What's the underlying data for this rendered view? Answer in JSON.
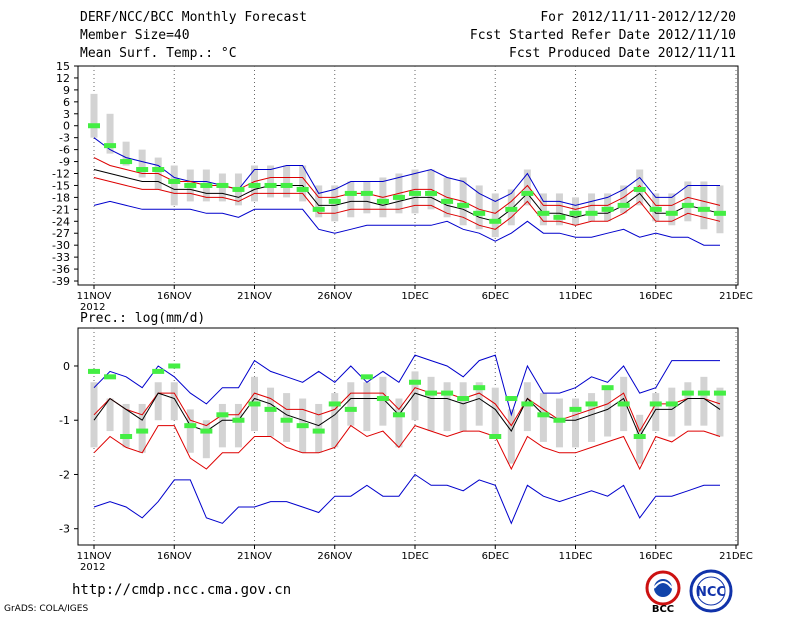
{
  "header": {
    "left": [
      "DERF/NCC/BCC Monthly Forecast",
      "Member Size=40",
      "Mean Surf. Temp.: °C"
    ],
    "right": [
      "For 2012/11/11-2012/12/20",
      "Fcst Started Refer Date 2012/11/10",
      "Fcst Produced Date 2012/11/11"
    ]
  },
  "footer": {
    "url": "http://cmdp.ncc.cma.gov.cn",
    "credit": "GrADS: COLA/IGES",
    "logo_left_text": "BCC",
    "logo_right_text": "NCC"
  },
  "colors": {
    "bar": "#d3d3d3",
    "obs": "#44ee44",
    "mean": "#000000",
    "inner": "#dd0000",
    "outer": "#0000cc",
    "grid": "#666666"
  },
  "chart_data": [
    {
      "type": "line",
      "title": "Mean Surf. Temp.: °C",
      "ylim": [
        -40,
        15
      ],
      "yticks": [
        15,
        12,
        9,
        6,
        3,
        0,
        -3,
        -6,
        -9,
        -12,
        -15,
        -18,
        -21,
        -24,
        -27,
        -30,
        -33,
        -36,
        -39
      ],
      "xtick_labels": [
        "11NOV",
        "16NOV",
        "21NOV",
        "26NOV",
        "1DEC",
        "6DEC",
        "11DEC",
        "16DEC",
        "21DEC"
      ],
      "xtick_days": [
        0,
        5,
        10,
        15,
        20,
        25,
        30,
        35,
        40
      ],
      "year_label": "2012",
      "days": [
        0,
        1,
        2,
        3,
        4,
        5,
        6,
        7,
        8,
        9,
        10,
        11,
        12,
        13,
        14,
        15,
        16,
        17,
        18,
        19,
        20,
        21,
        22,
        23,
        24,
        25,
        26,
        27,
        28,
        29,
        30,
        31,
        32,
        33,
        34,
        35,
        36,
        37,
        38,
        39
      ],
      "series": [
        {
          "name": "upper",
          "values": [
            -3,
            -6,
            -8,
            -9,
            -10,
            -13,
            -14,
            -14,
            -15,
            -16,
            -11,
            -11,
            -10,
            -10,
            -17,
            -16,
            -14,
            -14,
            -14,
            -13,
            -12,
            -11,
            -13,
            -14,
            -17,
            -19,
            -17,
            -12,
            -19,
            -19,
            -20,
            -19,
            -18,
            -16,
            -13,
            -18,
            -18,
            -15,
            -15,
            -15
          ]
        },
        {
          "name": "p_high",
          "values": [
            -8,
            -10,
            -11,
            -12,
            -12,
            -14,
            -14,
            -15,
            -15,
            -16,
            -14,
            -13,
            -13,
            -13,
            -18,
            -18,
            -17,
            -17,
            -18,
            -17,
            -16,
            -16,
            -18,
            -19,
            -21,
            -22,
            -19,
            -15,
            -20,
            -20,
            -21,
            -20,
            -20,
            -18,
            -15,
            -20,
            -20,
            -18,
            -19,
            -20
          ]
        },
        {
          "name": "mean",
          "values": [
            -11,
            -12,
            -13,
            -14,
            -14,
            -16,
            -16,
            -17,
            -17,
            -18,
            -16,
            -15,
            -15,
            -15,
            -20,
            -20,
            -19,
            -19,
            -20,
            -19,
            -18,
            -18,
            -20,
            -21,
            -23,
            -24,
            -21,
            -17,
            -22,
            -22,
            -23,
            -22,
            -22,
            -20,
            -17,
            -22,
            -22,
            -20,
            -21,
            -22
          ]
        },
        {
          "name": "p_low",
          "values": [
            -13,
            -14,
            -15,
            -16,
            -16,
            -17,
            -17,
            -18,
            -18,
            -19,
            -17,
            -17,
            -17,
            -17,
            -22,
            -22,
            -21,
            -21,
            -21,
            -21,
            -20,
            -20,
            -22,
            -23,
            -25,
            -26,
            -23,
            -19,
            -24,
            -24,
            -25,
            -24,
            -24,
            -22,
            -19,
            -24,
            -24,
            -22,
            -23,
            -24
          ]
        },
        {
          "name": "lower",
          "values": [
            -20,
            -19,
            -20,
            -21,
            -21,
            -21,
            -21,
            -22,
            -22,
            -23,
            -21,
            -21,
            -21,
            -21,
            -26,
            -27,
            -26,
            -25,
            -25,
            -25,
            -25,
            -25,
            -24,
            -26,
            -27,
            -29,
            -27,
            -24,
            -27,
            -27,
            -28,
            -28,
            -27,
            -26,
            -28,
            -27,
            -28,
            -28,
            -30,
            -30
          ]
        },
        {
          "name": "box_top",
          "values": [
            8,
            3,
            -4,
            -6,
            -8,
            -10,
            -11,
            -11,
            -12,
            -12,
            -10,
            -10,
            -10,
            -10,
            -15,
            -15,
            -14,
            -14,
            -13,
            -12,
            -11,
            -11,
            -13,
            -13,
            -15,
            -17,
            -16,
            -11,
            -17,
            -17,
            -18,
            -17,
            -17,
            -15,
            -11,
            -17,
            -17,
            -14,
            -14,
            -15
          ]
        },
        {
          "name": "box_bottom",
          "values": [
            -3,
            -7,
            -10,
            -13,
            -16,
            -20,
            -19,
            -19,
            -19,
            -20,
            -19,
            -18,
            -18,
            -19,
            -23,
            -24,
            -23,
            -22,
            -23,
            -22,
            -22,
            -21,
            -23,
            -25,
            -26,
            -28,
            -25,
            -20,
            -25,
            -25,
            -25,
            -24,
            -24,
            -22,
            -20,
            -24,
            -25,
            -24,
            -26,
            -27
          ]
        },
        {
          "name": "observed",
          "values": [
            0,
            -5,
            -9,
            -11,
            -11,
            -14,
            -15,
            -15,
            -15,
            -16,
            -15,
            -15,
            -15,
            -16,
            -21,
            -19,
            -17,
            -17,
            -19,
            -18,
            -17,
            -17,
            -19,
            -20,
            -22,
            -24,
            -21,
            -17,
            -22,
            -23,
            -22,
            -22,
            -21,
            -20,
            -16,
            -21,
            -22,
            -20,
            -21,
            -22
          ]
        }
      ]
    },
    {
      "type": "line",
      "title": "Prec.: log(mm/d)",
      "ylim": [
        -3.3,
        0.7
      ],
      "yticks": [
        0,
        -1,
        -2,
        -3
      ],
      "xtick_labels": [
        "11NOV",
        "16NOV",
        "21NOV",
        "26NOV",
        "1DEC",
        "6DEC",
        "11DEC",
        "16DEC",
        "21DEC"
      ],
      "xtick_days": [
        0,
        5,
        10,
        15,
        20,
        25,
        30,
        35,
        40
      ],
      "year_label": "2012",
      "days": [
        0,
        1,
        2,
        3,
        4,
        5,
        6,
        7,
        8,
        9,
        10,
        11,
        12,
        13,
        14,
        15,
        16,
        17,
        18,
        19,
        20,
        21,
        22,
        23,
        24,
        25,
        26,
        27,
        28,
        29,
        30,
        31,
        32,
        33,
        34,
        35,
        36,
        37,
        38,
        39
      ],
      "series": [
        {
          "name": "upper",
          "values": [
            -0.4,
            -0.1,
            -0.2,
            -0.4,
            0.0,
            -0.2,
            -0.5,
            -0.7,
            -0.4,
            -0.4,
            0.1,
            -0.1,
            -0.2,
            -0.3,
            -0.1,
            -0.3,
            0.0,
            -0.3,
            -0.1,
            -0.3,
            0.2,
            0.1,
            0.0,
            -0.2,
            0.1,
            0.2,
            -0.9,
            0.0,
            -0.5,
            -0.5,
            -0.4,
            -0.2,
            -0.3,
            0.0,
            -0.5,
            -0.4,
            0.1,
            0.1,
            0.1,
            0.1
          ]
        },
        {
          "name": "p_high",
          "values": [
            -0.9,
            -0.6,
            -0.8,
            -0.9,
            -0.5,
            -0.5,
            -1.0,
            -1.1,
            -0.9,
            -0.9,
            -0.5,
            -0.6,
            -0.8,
            -0.8,
            -0.9,
            -0.8,
            -0.5,
            -0.5,
            -0.5,
            -0.8,
            -0.4,
            -0.5,
            -0.5,
            -0.6,
            -0.5,
            -0.7,
            -1.1,
            -0.6,
            -0.8,
            -1.0,
            -0.9,
            -0.8,
            -0.7,
            -0.5,
            -1.2,
            -0.7,
            -0.7,
            -0.6,
            -0.6,
            -0.7
          ]
        },
        {
          "name": "mean",
          "values": [
            -1.0,
            -0.6,
            -0.8,
            -1.0,
            -0.5,
            -0.6,
            -1.1,
            -1.2,
            -1.0,
            -1.0,
            -0.6,
            -0.7,
            -0.9,
            -1.0,
            -1.1,
            -0.9,
            -0.6,
            -0.6,
            -0.6,
            -0.9,
            -0.5,
            -0.6,
            -0.6,
            -0.7,
            -0.6,
            -0.8,
            -1.2,
            -0.6,
            -0.9,
            -1.0,
            -1.0,
            -0.9,
            -0.8,
            -0.6,
            -1.3,
            -0.8,
            -0.8,
            -0.6,
            -0.6,
            -0.8
          ]
        },
        {
          "name": "p_low",
          "values": [
            -1.6,
            -1.3,
            -1.5,
            -1.6,
            -1.1,
            -1.1,
            -1.7,
            -1.9,
            -1.6,
            -1.6,
            -1.3,
            -1.3,
            -1.5,
            -1.6,
            -1.6,
            -1.5,
            -1.1,
            -1.3,
            -1.2,
            -1.5,
            -1.1,
            -1.2,
            -1.3,
            -1.2,
            -1.2,
            -1.3,
            -1.9,
            -1.3,
            -1.5,
            -1.6,
            -1.6,
            -1.5,
            -1.4,
            -1.3,
            -1.9,
            -1.3,
            -1.4,
            -1.2,
            -1.2,
            -1.3
          ]
        },
        {
          "name": "lower",
          "values": [
            -2.6,
            -2.5,
            -2.6,
            -2.8,
            -2.5,
            -2.1,
            -2.1,
            -2.8,
            -2.9,
            -2.6,
            -2.6,
            -2.5,
            -2.5,
            -2.6,
            -2.7,
            -2.4,
            -2.4,
            -2.2,
            -2.4,
            -2.4,
            -2.0,
            -2.2,
            -2.2,
            -2.3,
            -2.1,
            -2.2,
            -2.9,
            -2.2,
            -2.4,
            -2.5,
            -2.4,
            -2.3,
            -2.4,
            -2.2,
            -2.8,
            -2.4,
            -2.4,
            -2.3,
            -2.2,
            -2.2
          ]
        },
        {
          "name": "box_top",
          "values": [
            -0.3,
            -0.6,
            -0.7,
            -0.7,
            -0.3,
            -0.3,
            -0.8,
            -1.0,
            -0.7,
            -0.7,
            -0.2,
            -0.4,
            -0.5,
            -0.6,
            -0.7,
            -0.5,
            -0.3,
            -0.3,
            -0.2,
            -0.6,
            -0.1,
            -0.2,
            -0.3,
            -0.3,
            -0.3,
            -0.4,
            -0.8,
            -0.3,
            -0.5,
            -0.6,
            -0.6,
            -0.5,
            -0.4,
            -0.2,
            -0.9,
            -0.5,
            -0.4,
            -0.3,
            -0.2,
            -0.4
          ]
        },
        {
          "name": "box_bottom",
          "values": [
            -1.5,
            -1.2,
            -1.5,
            -1.6,
            -1.0,
            -1.0,
            -1.6,
            -1.7,
            -1.5,
            -1.5,
            -1.2,
            -1.3,
            -1.4,
            -1.6,
            -1.6,
            -1.5,
            -1.1,
            -1.2,
            -1.1,
            -1.5,
            -1.0,
            -1.2,
            -1.2,
            -1.2,
            -1.1,
            -1.3,
            -1.8,
            -1.2,
            -1.4,
            -1.5,
            -1.5,
            -1.4,
            -1.3,
            -1.2,
            -1.8,
            -1.2,
            -1.3,
            -1.1,
            -1.1,
            -1.3
          ]
        },
        {
          "name": "observed",
          "values": [
            -0.1,
            -0.2,
            -1.3,
            -1.2,
            -0.1,
            0.0,
            -1.1,
            -1.2,
            -0.9,
            -1.0,
            -0.7,
            -0.8,
            -1.0,
            -1.1,
            -1.2,
            -0.7,
            -0.8,
            -0.2,
            -0.6,
            -0.9,
            -0.3,
            -0.5,
            -0.5,
            -0.6,
            -0.4,
            -1.3,
            -0.6,
            -0.7,
            -0.9,
            -1.0,
            -0.8,
            -0.7,
            -0.4,
            -0.7,
            -1.3,
            -0.7,
            -0.7,
            -0.5,
            -0.5,
            -0.5
          ]
        }
      ]
    }
  ]
}
